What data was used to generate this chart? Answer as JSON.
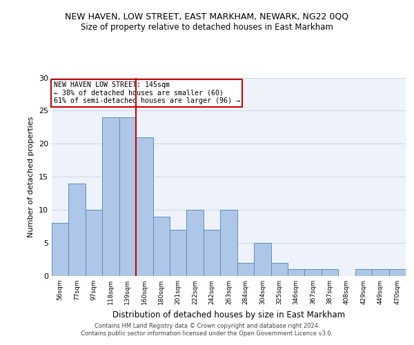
{
  "title": "NEW HAVEN, LOW STREET, EAST MARKHAM, NEWARK, NG22 0QQ",
  "subtitle": "Size of property relative to detached houses in East Markham",
  "xlabel": "Distribution of detached houses by size in East Markham",
  "ylabel": "Number of detached properties",
  "categories": [
    "56sqm",
    "77sqm",
    "97sqm",
    "118sqm",
    "139sqm",
    "160sqm",
    "180sqm",
    "201sqm",
    "222sqm",
    "242sqm",
    "263sqm",
    "284sqm",
    "304sqm",
    "325sqm",
    "346sqm",
    "367sqm",
    "387sqm",
    "408sqm",
    "429sqm",
    "449sqm",
    "470sqm"
  ],
  "bar_values": [
    8,
    14,
    10,
    24,
    24,
    21,
    9,
    7,
    10,
    7,
    10,
    2,
    5,
    2,
    1,
    1,
    1,
    0,
    1,
    1,
    1
  ],
  "bar_color": "#aec6e8",
  "bar_edge_color": "#5a8fc2",
  "ylim": [
    0,
    30
  ],
  "yticks": [
    0,
    5,
    10,
    15,
    20,
    25,
    30
  ],
  "grid_color": "#d0d8e8",
  "bg_color": "#eef3fb",
  "vline_x_idx": 4.5,
  "vline_color": "#cc0000",
  "annotation_text": "NEW HAVEN LOW STREET: 145sqm\n← 38% of detached houses are smaller (60)\n61% of semi-detached houses are larger (96) →",
  "annotation_box_color": "#ffffff",
  "annotation_box_edge": "#cc0000",
  "title_fontsize": 9,
  "subtitle_fontsize": 8.5,
  "footer": "Contains HM Land Registry data © Crown copyright and database right 2024.\nContains public sector information licensed under the Open Government Licence v3.0."
}
